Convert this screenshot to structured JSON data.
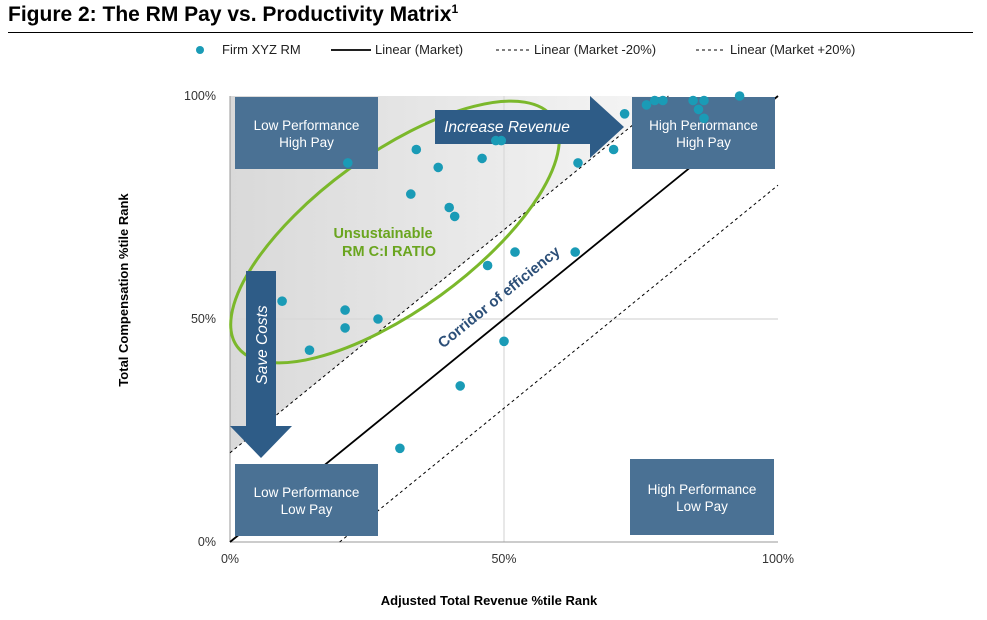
{
  "figure": {
    "title": "Figure 2: The RM Pay vs. Productivity Matrix",
    "title_sup": "1"
  },
  "colors": {
    "dot": "#1a9bb6",
    "box": "#4a7194",
    "arrow": "#2e5c87",
    "ellipse": "#7bb82b",
    "ellipse_text": "#6aa51f",
    "corridor_text": "#2c4f78",
    "shade": "#e4e4e4"
  },
  "chart_data": {
    "type": "scatter",
    "title": "",
    "xlabel": "Adjusted Total Revenue %tile Rank",
    "ylabel": "Total Compensation %tile Rank",
    "xlim": [
      0,
      100
    ],
    "ylim": [
      0,
      100
    ],
    "x_ticks": [
      {
        "value": 0,
        "label": "0%"
      },
      {
        "value": 50,
        "label": "50%"
      },
      {
        "value": 100,
        "label": "100%"
      }
    ],
    "y_ticks": [
      {
        "value": 0,
        "label": "0%"
      },
      {
        "value": 50,
        "label": "50%"
      },
      {
        "value": 100,
        "label": "100%"
      }
    ],
    "grid": true,
    "legend_position": "top",
    "legend": [
      {
        "label": "Firm XYZ RM",
        "kind": "dot"
      },
      {
        "label": "Linear (Market)",
        "kind": "solid"
      },
      {
        "label": "Linear (Market -20%)",
        "kind": "dashed"
      },
      {
        "label": "Linear (Market +20%)",
        "kind": "dashed"
      }
    ],
    "series": [
      {
        "name": "Firm XYZ RM",
        "kind": "scatter",
        "points": [
          [
            9.5,
            54
          ],
          [
            14.5,
            43
          ],
          [
            21,
            52
          ],
          [
            21,
            48
          ],
          [
            21.5,
            85
          ],
          [
            27,
            50
          ],
          [
            31,
            21
          ],
          [
            33,
            78
          ],
          [
            34,
            88
          ],
          [
            38,
            84
          ],
          [
            40,
            75
          ],
          [
            41,
            73
          ],
          [
            42,
            35
          ],
          [
            46,
            86
          ],
          [
            47,
            62
          ],
          [
            48.5,
            90
          ],
          [
            49.5,
            90
          ],
          [
            50,
            45
          ],
          [
            52,
            65
          ],
          [
            63,
            65
          ],
          [
            63.5,
            85
          ],
          [
            70,
            88
          ],
          [
            72,
            96
          ],
          [
            76,
            98
          ],
          [
            77.5,
            99
          ],
          [
            79,
            99
          ],
          [
            84.5,
            99
          ],
          [
            85.5,
            97
          ],
          [
            86.5,
            99
          ],
          [
            86.5,
            95
          ],
          [
            93,
            100
          ]
        ]
      },
      {
        "name": "Linear (Market)",
        "kind": "line",
        "style": "solid",
        "points": [
          [
            0,
            0
          ],
          [
            100,
            100
          ]
        ]
      },
      {
        "name": "Linear (Market -20%)",
        "kind": "line",
        "style": "dashed",
        "points": [
          [
            20,
            0
          ],
          [
            100,
            80
          ]
        ]
      },
      {
        "name": "Linear (Market +20%)",
        "kind": "line",
        "style": "dashed",
        "points": [
          [
            0,
            20
          ],
          [
            80,
            100
          ]
        ]
      }
    ],
    "quadrant_boxes": {
      "top_left": [
        "Low Performance",
        "High Pay"
      ],
      "top_right": [
        "High Performance",
        "High Pay"
      ],
      "bottom_left": [
        "Low Performance",
        "Low Pay"
      ],
      "bottom_right": [
        "High Performance",
        "Low Pay"
      ]
    },
    "annotations": {
      "increase_revenue": "Increase Revenue",
      "save_costs": "Save Costs",
      "unsustainable_line1": "Unsustainable",
      "unsustainable_line2": "RM C:I RATIO",
      "corridor": "Corridor of efficiency"
    }
  }
}
